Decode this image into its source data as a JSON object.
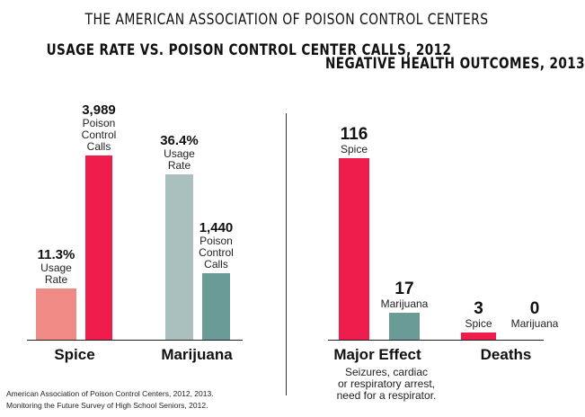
{
  "header": "THE AMERICAN ASSOCIATION OF POISON CONTROL CENTERS",
  "colors": {
    "spice_usage": "#f08a85",
    "spice_calls": "#ee1d4c",
    "mj_usage": "#a9c0bf",
    "mj_calls": "#6a9b96"
  },
  "chart_data": [
    {
      "type": "bar",
      "title": "USAGE RATE VS. POISON CONTROL CENTER CALLS, 2012",
      "categories": [
        "Spice",
        "Marijuana"
      ],
      "series": [
        {
          "name": "Usage Rate",
          "unit": "%",
          "values": [
            11.3,
            36.4
          ]
        },
        {
          "name": "Poison Control Calls",
          "values": [
            3989,
            1440
          ]
        }
      ],
      "labels": {
        "Spice": [
          {
            "value": "11.3%",
            "sub": "Usage\nRate"
          },
          {
            "value": "3,989",
            "sub": "Poison\nControl\nCalls"
          }
        ],
        "Marijuana": [
          {
            "value": "36.4%",
            "sub": "Usage\nRate"
          },
          {
            "value": "1,440",
            "sub": "Poison\nControl\nCalls"
          }
        ]
      },
      "xlabel": "",
      "ylabel": ""
    },
    {
      "type": "bar",
      "title": "NEGATIVE HEALTH OUTCOMES, 2013",
      "categories": [
        "Major Effect",
        "Deaths"
      ],
      "series": [
        {
          "name": "Spice",
          "values": [
            116,
            3
          ]
        },
        {
          "name": "Marijuana",
          "values": [
            17,
            0
          ]
        }
      ],
      "labels": {
        "Major Effect": [
          {
            "value": "116",
            "sub": "Spice"
          },
          {
            "value": "17",
            "sub": "Marijuana"
          }
        ],
        "Deaths": [
          {
            "value": "3",
            "sub": "Spice"
          },
          {
            "value": "0",
            "sub": "Marijuana"
          }
        ]
      },
      "note": "Seizures, cardiac\nor respiratory arrest,\nneed for a respirator.",
      "xlabel": "",
      "ylabel": ""
    }
  ],
  "source": "American Association of Poison Control Centers, 2012, 2013.\nMonitoring the Future Survey of High School Seniors, 2012."
}
